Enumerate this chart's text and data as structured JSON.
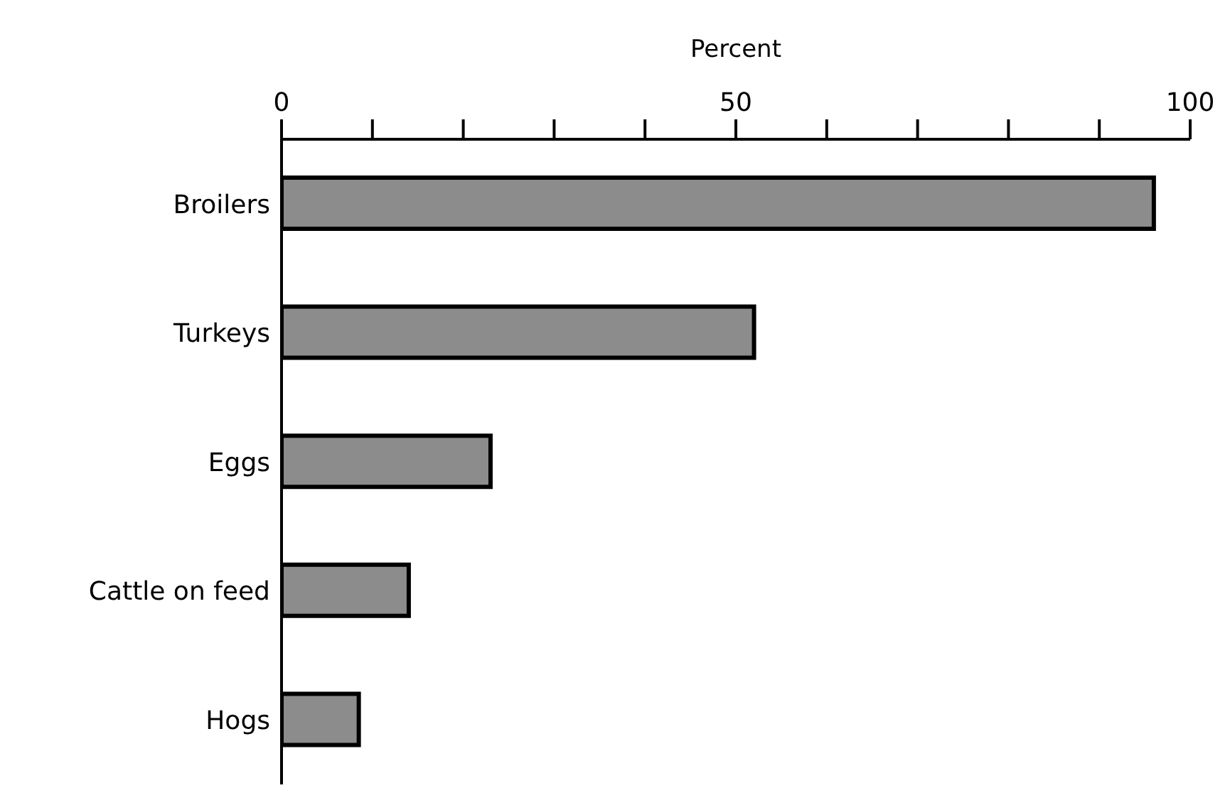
{
  "chart_data": {
    "type": "bar",
    "orientation": "horizontal",
    "xlabel": "Percent",
    "categories": [
      "Broilers",
      "Turkeys",
      "Eggs",
      "Cattle on feed",
      "Hogs"
    ],
    "values": [
      96,
      52,
      23,
      14,
      8.5
    ],
    "color": "#8c8c8c",
    "xlim": [
      0,
      100
    ],
    "xticks": [
      0,
      {
        "value": 10,
        "label": null
      },
      {
        "value": 20,
        "label": null
      },
      {
        "value": 30,
        "label": null
      },
      {
        "value": 40,
        "label": null
      },
      50,
      {
        "value": 60,
        "label": null
      },
      {
        "value": 70,
        "label": null
      },
      {
        "value": 80,
        "label": null
      },
      {
        "value": 90,
        "label": null
      },
      100
    ],
    "grid": false,
    "legend": false
  }
}
